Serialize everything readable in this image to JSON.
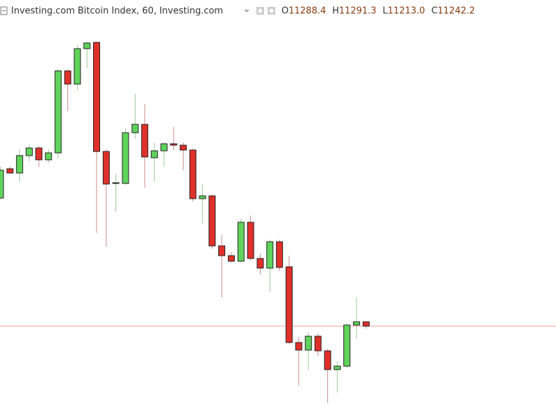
{
  "chart_data": {
    "type": "candlestick",
    "title": "Investing.com Bitcoin Index, 60, Investing.com",
    "ohlc_keys": [
      "O",
      "H",
      "L",
      "C"
    ],
    "ohlc_labels": [
      "11288.4",
      "11291.3",
      "11213.0",
      "11242.2"
    ],
    "open": [
      12609,
      12921,
      12876,
      13062,
      13143,
      13017,
      13091,
      13966,
      13825,
      14203,
      14270,
      13106,
      12765,
      12765,
      13306,
      13395,
      13039,
      13113,
      13188,
      13173,
      13121,
      12602,
      12632,
      12098,
      11994,
      11935,
      12350,
      11964,
      11861,
      12142,
      11875,
      11067,
      10986,
      11134,
      10978,
      10778,
      10815,
      11253,
      11288.4
    ],
    "high": [
      12943,
      12943,
      13128,
      13180,
      13165,
      13128,
      13981,
      13981,
      14241,
      14278,
      14278,
      13128,
      12869,
      13351,
      13721,
      13610,
      13202,
      13202,
      13366,
      13202,
      13136,
      12758,
      12646,
      12216,
      12031,
      12387,
      12424,
      12016,
      12165,
      12165,
      11994,
      11127,
      11178,
      11164,
      11001,
      10867,
      11275,
      11549,
      11291.3
    ],
    "low": [
      12595,
      12869,
      12780,
      13002,
      12943,
      12980,
      13032,
      13536,
      13759,
      13996,
      12239,
      12090,
      12461,
      12750,
      13240,
      12721,
      12780,
      12943,
      13121,
      12906,
      12572,
      12335,
      12068,
      11549,
      11920,
      11920,
      11942,
      11794,
      11608,
      11831,
      11052,
      10608,
      10778,
      10926,
      10422,
      10533,
      10793,
      11104,
      11213.0
    ],
    "close": [
      12906,
      12876,
      13062,
      13143,
      13017,
      13091,
      13966,
      13825,
      14203,
      14263,
      13106,
      12758,
      12772,
      13306,
      13395,
      13047,
      13113,
      13188,
      13173,
      13121,
      12602,
      12632,
      12098,
      11994,
      11935,
      12350,
      11964,
      11861,
      12142,
      11868,
      11067,
      10986,
      11134,
      10978,
      10778,
      10815,
      11253,
      11288,
      11242.2
    ],
    "up_color": "#5fd35b",
    "down_color": "#e0302a",
    "ylim": [
      10400,
      14500
    ],
    "price_line": true
  }
}
